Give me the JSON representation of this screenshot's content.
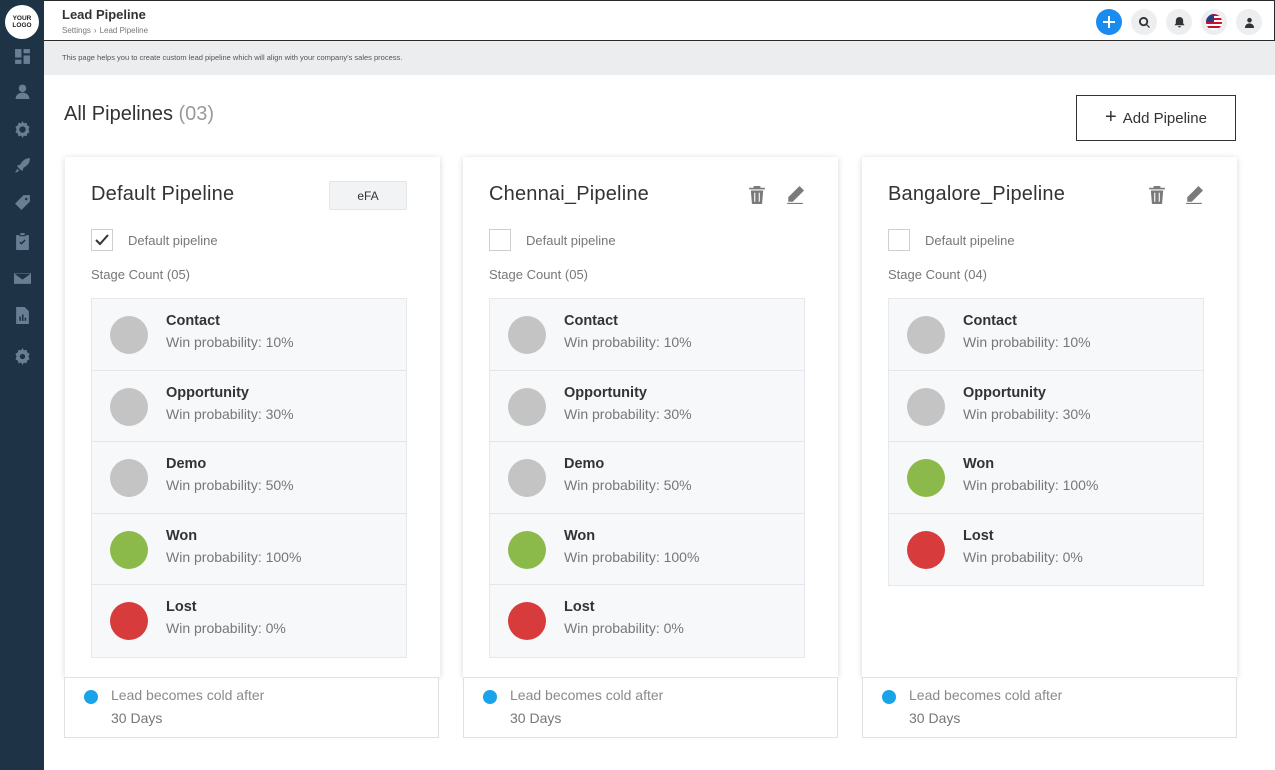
{
  "sidebar": {
    "logo_line1": "YOUR",
    "logo_line2": "LOGO",
    "items": [
      {
        "icon": "dashboard-icon"
      },
      {
        "icon": "user-icon"
      },
      {
        "icon": "settings-gear-icon"
      },
      {
        "icon": "rocket-icon"
      },
      {
        "icon": "tag-icon"
      },
      {
        "icon": "clipboard-check-icon"
      },
      {
        "icon": "mail-icon"
      },
      {
        "icon": "report-icon"
      },
      {
        "icon": "gear-icon"
      }
    ]
  },
  "header": {
    "title": "Lead Pipeline",
    "breadcrumb_1": "Settings",
    "breadcrumb_sep": "›",
    "breadcrumb_2": "Lead Pipeline"
  },
  "info": {
    "text": "This page helps you to create custom lead pipeline which will align with your company's sales process."
  },
  "main": {
    "title": "All Pipelines",
    "count": "(03)",
    "add_label": "Add Pipeline",
    "add_symbol": "+"
  },
  "colors": {
    "gray_stage": "#c4c4c4",
    "won": "#8cba4a",
    "lost": "#d83b3b",
    "cold_dot": "#1aa3e8",
    "add_btn": "#1a8cf0"
  },
  "pipelines": [
    {
      "name": "Default Pipeline",
      "tag": "eFA",
      "default_label": "Default pipeline",
      "is_default": true,
      "stage_count": "Stage Count (05)",
      "stages": [
        {
          "name": "Contact",
          "prob": "Win probability: 10%",
          "color": "#c4c4c4"
        },
        {
          "name": "Opportunity",
          "prob": "Win probability: 30%",
          "color": "#c4c4c4"
        },
        {
          "name": "Demo",
          "prob": "Win probability: 50%",
          "color": "#c4c4c4"
        },
        {
          "name": "Won",
          "prob": "Win probability: 100%",
          "color": "#8cba4a"
        },
        {
          "name": "Lost",
          "prob": "Win probability: 0%",
          "color": "#d83b3b"
        }
      ],
      "cold_label": "Lead becomes cold after",
      "cold_days": "30 Days"
    },
    {
      "name": "Chennai_Pipeline",
      "default_label": "Default pipeline",
      "is_default": false,
      "stage_count": "Stage Count (05)",
      "stages": [
        {
          "name": "Contact",
          "prob": "Win probability: 10%",
          "color": "#c4c4c4"
        },
        {
          "name": "Opportunity",
          "prob": "Win probability: 30%",
          "color": "#c4c4c4"
        },
        {
          "name": "Demo",
          "prob": "Win probability: 50%",
          "color": "#c4c4c4"
        },
        {
          "name": "Won",
          "prob": "Win probability: 100%",
          "color": "#8cba4a"
        },
        {
          "name": "Lost",
          "prob": "Win probability: 0%",
          "color": "#d83b3b"
        }
      ],
      "cold_label": "Lead becomes cold after",
      "cold_days": "30 Days"
    },
    {
      "name": "Bangalore_Pipeline",
      "default_label": "Default pipeline",
      "is_default": false,
      "stage_count": "Stage Count (04)",
      "stages": [
        {
          "name": "Contact",
          "prob": "Win probability: 10%",
          "color": "#c4c4c4"
        },
        {
          "name": "Opportunity",
          "prob": "Win probability: 30%",
          "color": "#c4c4c4"
        },
        {
          "name": "Won",
          "prob": "Win probability: 100%",
          "color": "#8cba4a"
        },
        {
          "name": "Lost",
          "prob": "Win probability: 0%",
          "color": "#d83b3b"
        }
      ],
      "cold_label": "Lead becomes cold after",
      "cold_days": "30 Days"
    }
  ]
}
